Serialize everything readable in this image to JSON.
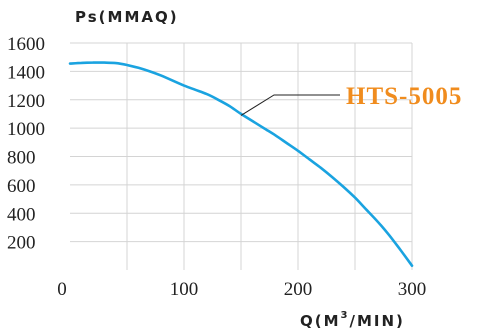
{
  "chart_data": {
    "type": "line",
    "title": "",
    "ylabel": "Ps(MMAQ)",
    "xlabel_main": "Q(M",
    "xlabel_sup": "3",
    "xlabel_tail": "/MIN)",
    "xlim": [
      0,
      300
    ],
    "ylim": [
      0,
      1600
    ],
    "xticks": [
      {
        "value": 0,
        "label": "0"
      },
      {
        "value": 100,
        "label": "100"
      },
      {
        "value": 200,
        "label": "200"
      },
      {
        "value": 300,
        "label": "300"
      }
    ],
    "yticks": [
      {
        "value": 200,
        "label": "200"
      },
      {
        "value": 400,
        "label": "400"
      },
      {
        "value": 600,
        "label": "600"
      },
      {
        "value": 800,
        "label": "800"
      },
      {
        "value": 1000,
        "label": "1000"
      },
      {
        "value": 1200,
        "label": "1200"
      },
      {
        "value": 1400,
        "label": "1400"
      },
      {
        "value": 1600,
        "label": "1600"
      }
    ],
    "x_gridlines": [
      50,
      100,
      150,
      200,
      250,
      300
    ],
    "y_gridlines": [
      200,
      400,
      600,
      800,
      1000,
      1200,
      1400,
      1600
    ],
    "grid": true,
    "series": [
      {
        "name": "HTS-5005",
        "color": "#1aa3e0",
        "label_color": "#f08c1e",
        "leader_from": {
          "x": 150,
          "y": 1090
        },
        "x": [
          0,
          10,
          20,
          30,
          40,
          50,
          60,
          70,
          80,
          90,
          100,
          110,
          120,
          130,
          140,
          150,
          160,
          170,
          180,
          190,
          200,
          210,
          220,
          230,
          240,
          250,
          260,
          270,
          280,
          290,
          300
        ],
        "y": [
          1455,
          1460,
          1462,
          1462,
          1458,
          1445,
          1425,
          1400,
          1370,
          1335,
          1300,
          1270,
          1240,
          1200,
          1155,
          1100,
          1050,
          1000,
          950,
          895,
          840,
          780,
          720,
          655,
          585,
          510,
          425,
          340,
          245,
          140,
          30
        ]
      }
    ]
  }
}
